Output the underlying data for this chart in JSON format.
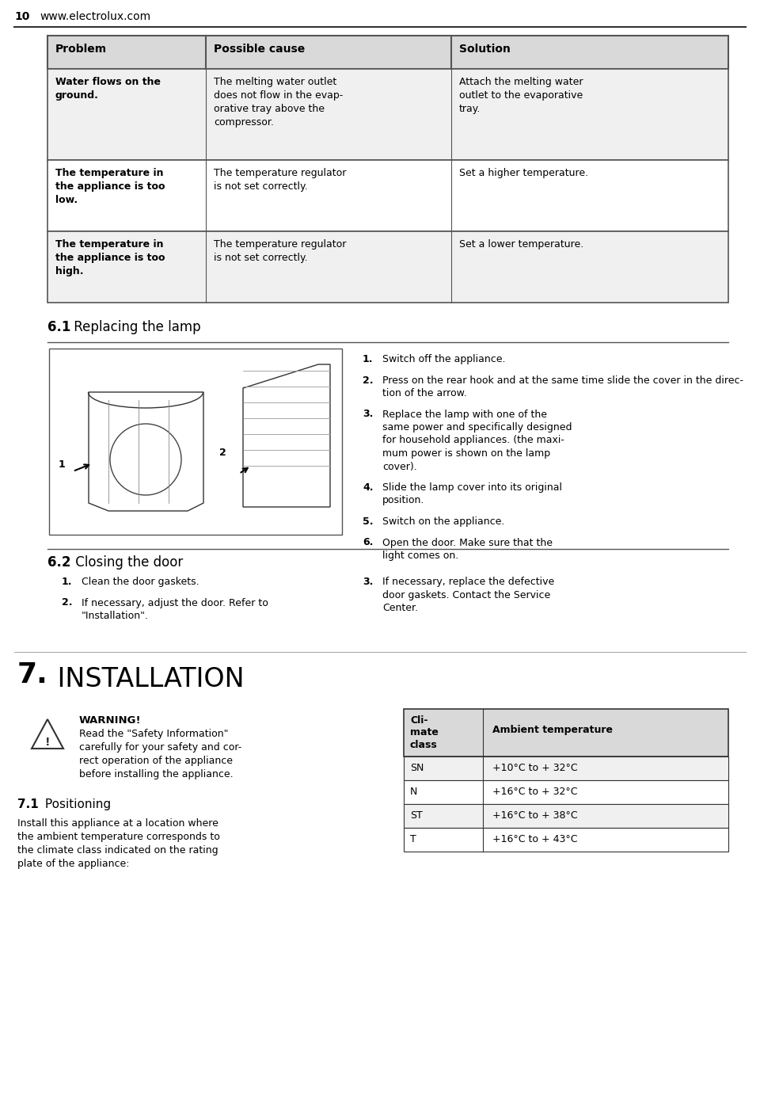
{
  "background_color": "#ffffff",
  "page_number": "10",
  "website": "www.electrolux.com",
  "table": {
    "headers": [
      "Problem",
      "Possible cause",
      "Solution"
    ],
    "rows": [
      {
        "problem": "Water flows on the\nground.",
        "cause": "The melting water outlet\ndoes not flow in the evap-\norative tray above the\ncompressor.",
        "solution": "Attach the melting water\noutlet to the evaporative\ntray."
      },
      {
        "problem": "The temperature in\nthe appliance is too\nlow.",
        "cause": "The temperature regulator\nis not set correctly.",
        "solution": "Set a higher temperature."
      },
      {
        "problem": "The temperature in\nthe appliance is too\nhigh.",
        "cause": "The temperature regulator\nis not set correctly.",
        "solution": "Set a lower temperature."
      }
    ]
  },
  "section_61": {
    "title_bold": "6.1",
    "title_rest": " Replacing the lamp",
    "instructions": [
      {
        "num": "1.",
        "text": "Switch off the appliance."
      },
      {
        "num": "2.",
        "text": "Press on the rear hook and at the same time slide the cover in the direc-\ntion of the arrow."
      },
      {
        "num": "3.",
        "text": "Replace the lamp with one of the\nsame power and specifically designed\nfor household appliances. (the maxi-\nmum power is shown on the lamp\ncover)."
      },
      {
        "num": "4.",
        "text": "Slide the lamp cover into its original\nposition."
      },
      {
        "num": "5.",
        "text": "Switch on the appliance."
      },
      {
        "num": "6.",
        "text": "Open the door. Make sure that the\nlight comes on."
      }
    ]
  },
  "section_62": {
    "title_bold": "6.2",
    "title_rest": " Closing the door",
    "left_instructions": [
      {
        "num": "1.",
        "text": "Clean the door gaskets."
      },
      {
        "num": "2.",
        "text": "If necessary, adjust the door. Refer to\n\"Installation\"."
      }
    ],
    "right_instructions": [
      {
        "num": "3.",
        "text": "If necessary, replace the defective\ndoor gaskets. Contact the Service\nCenter."
      }
    ]
  },
  "section_7": {
    "title_bold": "7.",
    "title_rest": "INSTALLATION",
    "warning_title": "WARNING!",
    "warning_text": "Read the \"Safety Information\"\ncarefully for your safety and cor-\nrect operation of the appliance\nbefore installing the appliance.",
    "subsection_71_bold": "7.1",
    "subsection_71_rest": " Positioning",
    "positioning_text": "Install this appliance at a location where\nthe ambient temperature corresponds to\nthe climate class indicated on the rating\nplate of the appliance:",
    "climate_table": {
      "headers": [
        "Cli-\nmate\nclass",
        "Ambient temperature"
      ],
      "rows": [
        [
          "SN",
          "+10°C to + 32°C"
        ],
        [
          "N",
          "+16°C to + 32°C"
        ],
        [
          "ST",
          "+16°C to + 38°C"
        ],
        [
          "T",
          "+16°C to + 43°C"
        ]
      ]
    }
  }
}
